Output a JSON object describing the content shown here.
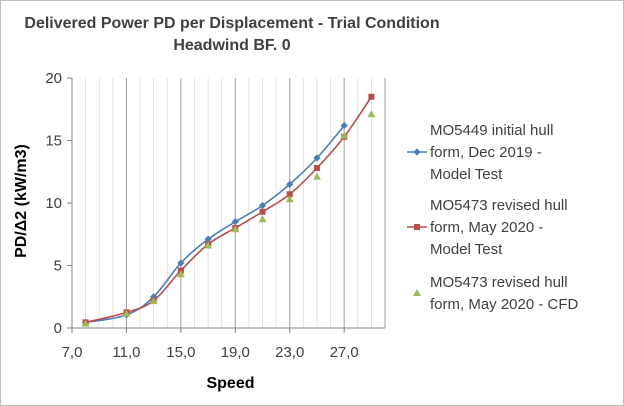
{
  "chart_data": {
    "type": "line",
    "title": [
      "Delivered Power PD per Displacement - Trial Condition",
      "Headwind BF. 0"
    ],
    "xlabel": "Speed",
    "ylabel": "PD/Δ2 (kW/m3)",
    "xlim": [
      7.0,
      30.0
    ],
    "ylim": [
      0,
      20
    ],
    "xticks": [
      "7,0",
      "11,0",
      "15,0",
      "19,0",
      "23,0",
      "27,0"
    ],
    "xtick_values": [
      7,
      11,
      15,
      19,
      23,
      27
    ],
    "yticks": [
      "0",
      "5",
      "10",
      "15",
      "20"
    ],
    "ytick_values": [
      0,
      5,
      10,
      15,
      20
    ],
    "grid": "vertical minor and major lines",
    "legend_position": "right",
    "series": [
      {
        "name": [
          "MO5449 initial hull",
          "form, Dec 2019 -",
          "Model Test"
        ],
        "color": "#4a7ebb",
        "marker": "diamond",
        "line": true,
        "x": [
          8,
          11,
          13,
          15,
          17,
          19,
          21,
          23,
          25,
          27
        ],
        "y": [
          0.45,
          1.05,
          2.5,
          5.2,
          7.1,
          8.5,
          9.8,
          11.5,
          13.6,
          16.2
        ]
      },
      {
        "name": [
          "MO5473 revised hull",
          "form, May 2020 -",
          "Model Test"
        ],
        "color": "#be4b48",
        "marker": "square",
        "line": true,
        "x": [
          8,
          11,
          13,
          15,
          17,
          19,
          21,
          23,
          25,
          27,
          29
        ],
        "y": [
          0.45,
          1.25,
          2.2,
          4.6,
          6.7,
          8.0,
          9.3,
          10.7,
          12.8,
          15.3,
          18.5
        ]
      },
      {
        "name": [
          "MO5473 revised hull",
          "form, May 2020 - CFD"
        ],
        "color": "#9bbb59",
        "marker": "triangle",
        "line": false,
        "x": [
          8,
          11,
          13,
          15,
          17,
          19,
          21,
          23,
          25,
          27,
          29
        ],
        "y": [
          0.35,
          1.15,
          2.15,
          4.3,
          6.6,
          7.9,
          8.7,
          10.3,
          12.1,
          15.4,
          17.1
        ]
      }
    ]
  }
}
